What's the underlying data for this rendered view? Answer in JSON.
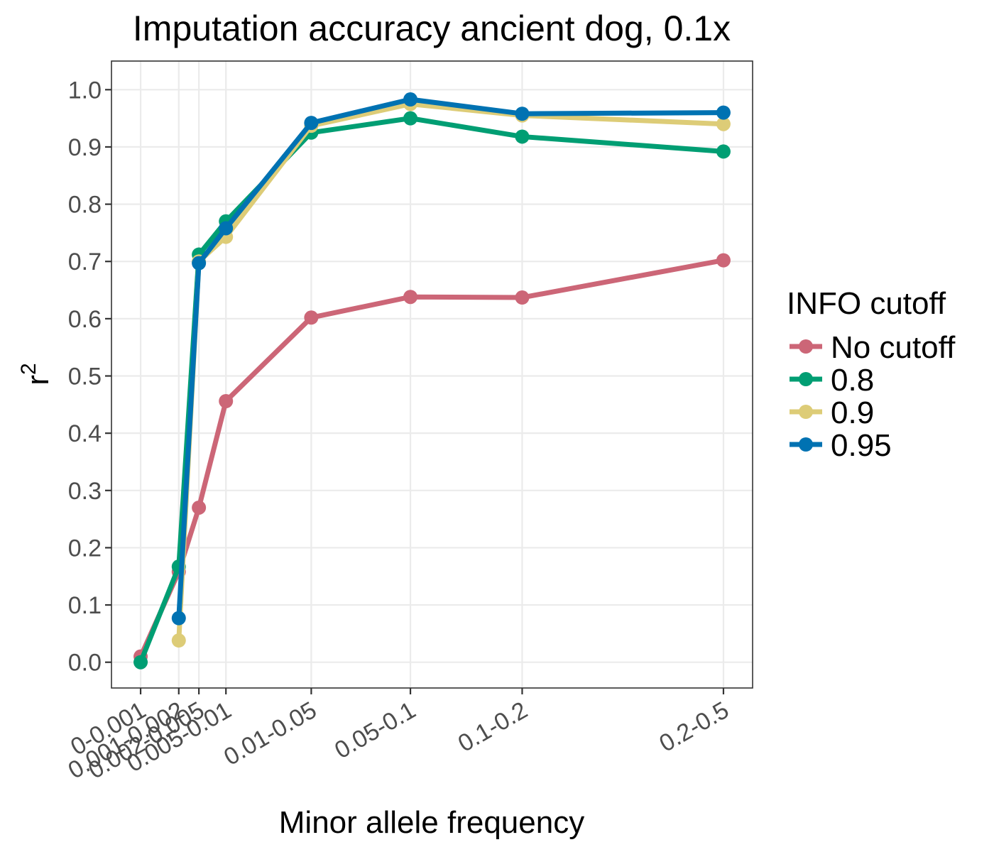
{
  "chart_data": {
    "type": "line",
    "title": "Imputation accuracy ancient dog, 0.1x",
    "xlabel": "Minor allele frequency",
    "ylabel": "r",
    "ylabel_superscript": "2",
    "categories": [
      "0-0.001",
      "0.001-0.002",
      "0.002-0.005",
      "0.005-0.01",
      "0.01-0.05",
      "0.05-0.1",
      "0.1-0.2",
      "0.2-0.5"
    ],
    "x_positions": [
      0,
      0.0015,
      0.0035,
      0.0075,
      0.03,
      0.075,
      0.15,
      0.35
    ],
    "x_scale": "sqrt",
    "ylim": [
      -0.045,
      1.05
    ],
    "yticks": [
      "0.0",
      "0.1",
      "0.2",
      "0.3",
      "0.4",
      "0.5",
      "0.6",
      "0.7",
      "0.8",
      "0.9",
      "1.0"
    ],
    "grid": true,
    "legend": {
      "title": "INFO cutoff",
      "position": "right"
    },
    "series": [
      {
        "name": "No cutoff",
        "color": "#CC6677",
        "values": [
          0.01,
          0.158,
          0.27,
          0.456,
          0.602,
          0.638,
          0.637,
          0.702
        ]
      },
      {
        "name": "0.8",
        "color": "#009E73",
        "values": [
          0.0,
          0.167,
          0.712,
          0.77,
          0.925,
          0.95,
          0.918,
          0.892
        ]
      },
      {
        "name": "0.9",
        "color": "#DDCC77",
        "values": [
          null,
          0.038,
          0.7,
          0.743,
          0.937,
          0.975,
          0.955,
          0.94
        ]
      },
      {
        "name": "0.95",
        "color": "#0072B2",
        "values": [
          null,
          0.077,
          0.697,
          0.758,
          0.942,
          0.983,
          0.958,
          0.96
        ]
      }
    ]
  }
}
